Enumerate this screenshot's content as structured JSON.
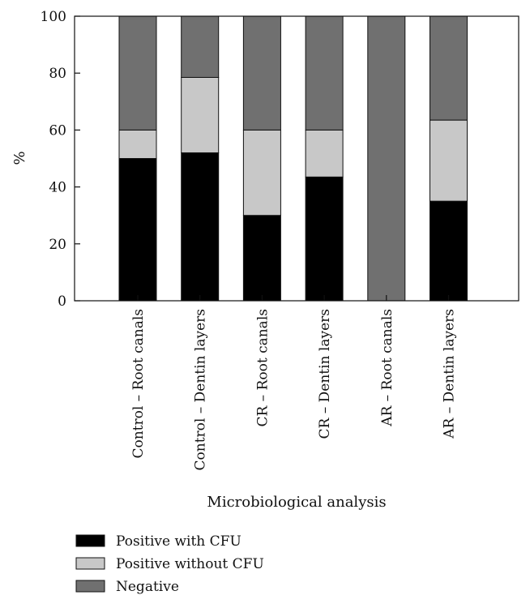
{
  "chart_data": {
    "type": "bar",
    "stacked": true,
    "title": "",
    "xlabel": "Microbiological analysis",
    "ylabel": "%",
    "ylim": [
      0,
      100
    ],
    "yticks": [
      "0",
      "20",
      "40",
      "60",
      "80",
      "100"
    ],
    "grid": false,
    "legend_position": "bottom-left",
    "categories": [
      "Control – Root canals",
      "Control – Dentin layers",
      "CR – Root canals",
      "CR – Dentin layers",
      "AR – Root canals",
      "AR – Dentin layers"
    ],
    "series": [
      {
        "name": "Positive with CFU",
        "color": "#000000",
        "values": [
          50,
          52,
          30,
          43.5,
          0,
          35
        ]
      },
      {
        "name": "Positive without CFU",
        "color": "#c8c8c8",
        "values": [
          10,
          26.5,
          30,
          16.5,
          0,
          28.5
        ]
      },
      {
        "name": "Negative",
        "color": "#707070",
        "values": [
          40,
          21.5,
          40,
          40,
          100,
          36.5
        ]
      }
    ]
  }
}
